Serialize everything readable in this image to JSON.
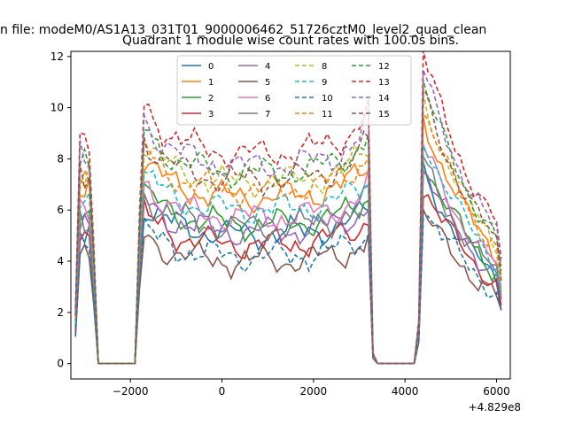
{
  "chart_data": {
    "type": "line",
    "suptitle": "n file: modeM0/AS1A13_031T01_9000006462_51726cztM0_level2_quad_clean",
    "title": "Quadrant 1 module wise count rates with 100.0s bins.",
    "xlabel": "",
    "ylabel": "",
    "x_offset_label": "+4.829e8",
    "xlim": [
      -3300,
      6300
    ],
    "ylim": [
      -0.6,
      12.2
    ],
    "xticks": [
      -2000,
      0,
      2000,
      4000,
      6000
    ],
    "xtick_labels": [
      "−2000",
      "0",
      "2000",
      "4000",
      "6000"
    ],
    "yticks": [
      0,
      2,
      4,
      6,
      8,
      10,
      12
    ],
    "ytick_labels": [
      "0",
      "2",
      "4",
      "6",
      "8",
      "10",
      "12"
    ],
    "grid": false,
    "legend": {
      "placement": "upper center",
      "columns": 4
    },
    "series": [
      {
        "name": "0",
        "color": "#1f77b4",
        "dash": "solid",
        "base": 5.3,
        "amp": 1.0,
        "phase": 0.3
      },
      {
        "name": "1",
        "color": "#ff7f0e",
        "dash": "solid",
        "base": 6.8,
        "amp": 1.3,
        "phase": 1.1
      },
      {
        "name": "2",
        "color": "#2ca02c",
        "dash": "solid",
        "base": 5.7,
        "amp": 1.1,
        "phase": 2.0
      },
      {
        "name": "3",
        "color": "#d62728",
        "dash": "solid",
        "base": 4.9,
        "amp": 1.0,
        "phase": 2.7
      },
      {
        "name": "4",
        "color": "#9467bd",
        "dash": "solid",
        "base": 5.4,
        "amp": 1.05,
        "phase": 3.4
      },
      {
        "name": "5",
        "color": "#8c564b",
        "dash": "solid",
        "base": 4.2,
        "amp": 0.85,
        "phase": 4.1
      },
      {
        "name": "6",
        "color": "#e377c2",
        "dash": "solid",
        "base": 6.0,
        "amp": 1.2,
        "phase": 4.9
      },
      {
        "name": "7",
        "color": "#7f7f7f",
        "dash": "solid",
        "base": 5.6,
        "amp": 1.1,
        "phase": 5.6
      },
      {
        "name": "8",
        "color": "#bcbd22",
        "dash": "dashed",
        "base": 7.4,
        "amp": 1.35,
        "phase": 0.8
      },
      {
        "name": "9",
        "color": "#17becf",
        "dash": "dashed",
        "base": 6.3,
        "amp": 1.25,
        "phase": 1.6
      },
      {
        "name": "10",
        "color": "#1f77b4",
        "dash": "dashed",
        "base": 4.4,
        "amp": 0.9,
        "phase": 2.3
      },
      {
        "name": "11",
        "color": "#ff7f0e",
        "dash": "dashed",
        "base": 7.1,
        "amp": 1.4,
        "phase": 3.0
      },
      {
        "name": "12",
        "color": "#2ca02c",
        "dash": "dashed",
        "base": 7.8,
        "amp": 1.5,
        "phase": 3.8
      },
      {
        "name": "13",
        "color": "#d62728",
        "dash": "dashed",
        "base": 8.6,
        "amp": 1.7,
        "phase": 4.5
      },
      {
        "name": "14",
        "color": "#9467bd",
        "dash": "dashed",
        "base": 8.1,
        "amp": 1.6,
        "phase": 5.2
      },
      {
        "name": "15",
        "color": "#8c564b",
        "dash": "dashed",
        "base": 7.5,
        "amp": 1.45,
        "phase": 5.9
      }
    ],
    "segments": [
      {
        "x_start": -3200,
        "x_end": -2800,
        "shape": "burst"
      },
      {
        "x_start": -2700,
        "x_end": -1900,
        "shape": "zero"
      },
      {
        "x_start": -1800,
        "x_end": 3300,
        "shape": "plateau"
      },
      {
        "x_start": 3400,
        "x_end": 4200,
        "shape": "zero"
      },
      {
        "x_start": 4300,
        "x_end": 6100,
        "shape": "decay"
      }
    ]
  }
}
